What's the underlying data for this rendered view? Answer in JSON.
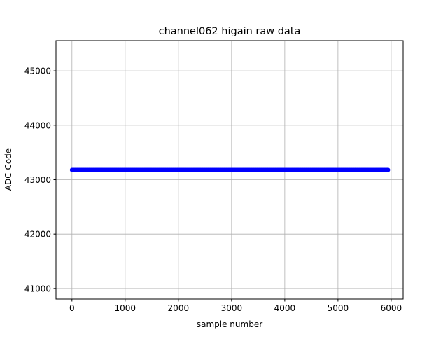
{
  "chart_data": {
    "type": "scatter",
    "title": "channel062 higain raw data",
    "xlabel": "sample number",
    "ylabel": "ADC Code",
    "xlim": [
      -300,
      6225
    ],
    "ylim": [
      40805,
      45555
    ],
    "xticks": [
      0,
      1000,
      2000,
      3000,
      4000,
      5000,
      6000
    ],
    "yticks": [
      41000,
      42000,
      43000,
      44000,
      45000
    ],
    "grid": true,
    "series": [
      {
        "x_range": [
          0,
          5940
        ],
        "y_value": 43180,
        "marker": "circle",
        "color": "#0000ff"
      }
    ]
  }
}
